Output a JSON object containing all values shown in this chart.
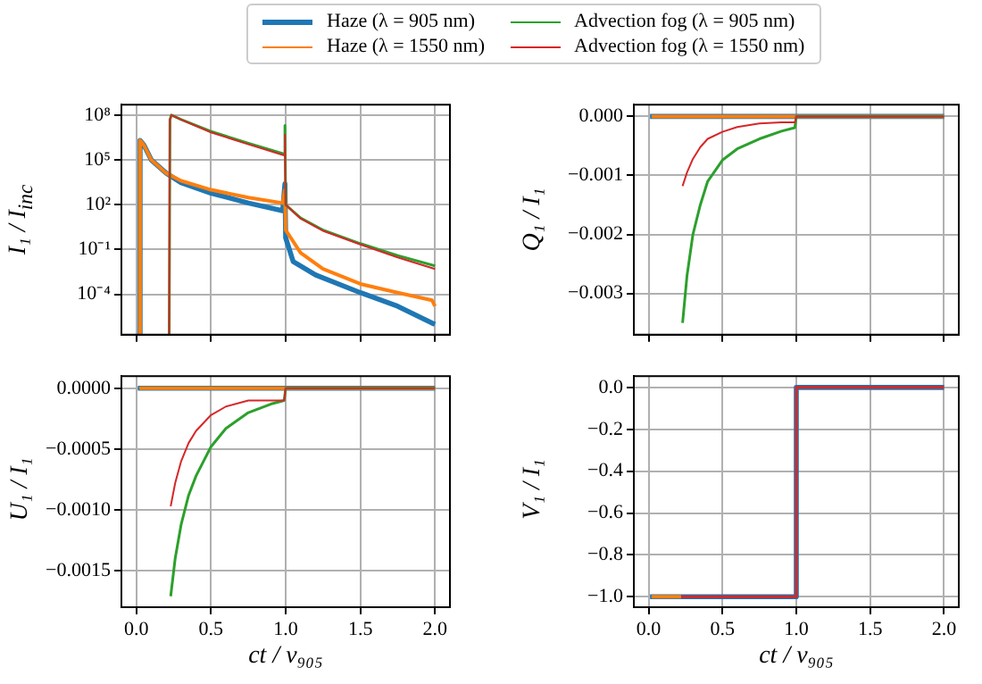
{
  "chart_data": [
    {
      "type": "line",
      "ylabel": "I₁ / I$_{inc}$",
      "log": "y",
      "grid": true,
      "legend": "top",
      "tick_labels": "y",
      "xlim": [
        -0.1,
        2.1
      ],
      "xticks": [
        {
          "value": 0,
          "label": null
        },
        {
          "value": 0.5,
          "label": null
        },
        {
          "value": 1,
          "label": null
        },
        {
          "value": 1.5,
          "label": null
        },
        {
          "value": 2,
          "label": null
        }
      ],
      "ylim": [
        2e-07,
        500000000.0
      ],
      "yticks": [
        {
          "value": 0.0001,
          "label": "10⁻⁴"
        },
        {
          "value": 0.1,
          "label": "10⁻¹"
        },
        {
          "value": 100,
          "label": "10²"
        },
        {
          "value": 100000,
          "label": "10⁵"
        },
        {
          "value": 100000000,
          "label": "10⁸"
        }
      ],
      "series": [
        {
          "name": "Haze (λ = 905 nm)",
          "color": "#1f77b4",
          "x": [
            0.02,
            0.025,
            0.05,
            0.1,
            0.2,
            0.3,
            0.5,
            0.75,
            0.98,
            0.995,
            1.0,
            1.05,
            1.2,
            1.5,
            1.75,
            1.98,
            2.0
          ],
          "values": [
            2e-07,
            2000000.0,
            1000000.0,
            100000.0,
            13000.0,
            3000.0,
            600.0,
            130.0,
            40,
            2500.0,
            0.6,
            0.016,
            0.002,
            0.00013,
            1.6e-05,
            1.2e-06,
            1e-06
          ]
        },
        {
          "name": "Haze (λ = 1550 nm)",
          "color": "#ff7f0e",
          "x": [
            0.02,
            0.025,
            0.05,
            0.1,
            0.2,
            0.3,
            0.5,
            0.75,
            0.98,
            0.995,
            1.0,
            1.1,
            1.25,
            1.5,
            1.75,
            1.98,
            2.0
          ],
          "values": [
            2e-07,
            2000000.0,
            1000000.0,
            100000.0,
            13000.0,
            4000.0,
            1000.0,
            300.0,
            130.0,
            1000.0,
            2,
            0.06,
            0.005,
            0.0005,
            0.00013,
            4e-05,
            1.6e-05
          ]
        },
        {
          "name": "Advection fog (λ = 905 nm)",
          "color": "#2ca02c",
          "x": [
            0.22,
            0.225,
            0.235,
            0.3,
            0.5,
            0.75,
            0.99,
            0.995,
            1.0,
            1.1,
            1.25,
            1.5,
            1.75,
            2.0
          ],
          "values": [
            2e-07,
            50000000.0,
            100000000.0,
            50000000.0,
            8000000.0,
            1300000.0,
            250000.0,
            20000000.0,
            100,
            13,
            2,
            0.25,
            0.04,
            0.008
          ]
        },
        {
          "name": "Advection fog (λ = 1550 nm)",
          "color": "#d62728",
          "x": [
            0.22,
            0.225,
            0.235,
            0.3,
            0.5,
            0.75,
            0.99,
            0.995,
            1.0,
            1.1,
            1.25,
            1.5,
            1.75,
            2.0
          ],
          "values": [
            2e-07,
            50000000.0,
            100000000.0,
            50000000.0,
            7000000.0,
            1100000.0,
            200000.0,
            5000000.0,
            100,
            12,
            1.8,
            0.22,
            0.03,
            0.005
          ]
        }
      ]
    },
    {
      "type": "line",
      "ylabel": "Q₁ / I₁",
      "grid": true,
      "tick_labels": "y",
      "xlim": [
        -0.1,
        2.1
      ],
      "xticks": [
        {
          "value": 0,
          "label": null
        },
        {
          "value": 0.5,
          "label": null
        },
        {
          "value": 1,
          "label": null
        },
        {
          "value": 1.5,
          "label": null
        },
        {
          "value": 2,
          "label": null
        }
      ],
      "ylim": [
        -0.0037,
        0.0002
      ],
      "yticks": [
        {
          "value": -0.003,
          "label": "−0.003"
        },
        {
          "value": -0.002,
          "label": "−0.002"
        },
        {
          "value": -0.001,
          "label": "−0.001"
        },
        {
          "value": 0,
          "label": "0.000"
        }
      ],
      "series": [
        {
          "color": "#1f77b4",
          "x": [
            0.01,
            2.0
          ],
          "values": [
            0,
            0
          ]
        },
        {
          "color": "#ff7f0e",
          "x": [
            0.02,
            1.0,
            2.0
          ],
          "values": [
            0,
            0,
            0
          ]
        },
        {
          "color": "#2ca02c",
          "x": [
            0.23,
            0.26,
            0.3,
            0.35,
            0.4,
            0.5,
            0.6,
            0.75,
            0.9,
            0.99,
            1.0,
            2.0
          ],
          "values": [
            -0.0035,
            -0.0027,
            -0.002,
            -0.0015,
            -0.0011,
            -0.00074,
            -0.00055,
            -0.00038,
            -0.00025,
            -0.00019,
            0,
            0
          ]
        },
        {
          "color": "#d62728",
          "x": [
            0.23,
            0.26,
            0.3,
            0.35,
            0.4,
            0.5,
            0.6,
            0.75,
            0.9,
            0.99,
            1.0,
            2.0
          ],
          "values": [
            -0.00118,
            -0.00095,
            -0.00072,
            -0.00052,
            -0.00038,
            -0.00026,
            -0.00018,
            -0.00012,
            -0.0001,
            -0.0001,
            0,
            0
          ]
        }
      ]
    },
    {
      "type": "line",
      "xlabel": "ct / v₉₀₅",
      "ylabel": "U₁ / I₁",
      "grid": true,
      "xlim": [
        -0.1,
        2.1
      ],
      "xticks": [
        {
          "value": 0,
          "label": "0.0"
        },
        {
          "value": 0.5,
          "label": "0.5"
        },
        {
          "value": 1,
          "label": "1.0"
        },
        {
          "value": 1.5,
          "label": "1.5"
        },
        {
          "value": 2,
          "label": "2.0"
        }
      ],
      "ylim": [
        -0.0018,
        0.0001
      ],
      "yticks": [
        {
          "value": -0.0015,
          "label": "−0.0015"
        },
        {
          "value": -0.001,
          "label": "−0.0010"
        },
        {
          "value": -0.0005,
          "label": "−0.0005"
        },
        {
          "value": 0,
          "label": "0.0000"
        }
      ],
      "series": [
        {
          "color": "#1f77b4",
          "x": [
            0.01,
            2.0
          ],
          "values": [
            0,
            0
          ]
        },
        {
          "color": "#ff7f0e",
          "x": [
            0.02,
            1.0,
            2.0
          ],
          "values": [
            0,
            0,
            0
          ]
        },
        {
          "color": "#2ca02c",
          "x": [
            0.23,
            0.26,
            0.3,
            0.35,
            0.4,
            0.5,
            0.6,
            0.75,
            0.9,
            0.99,
            1.0,
            2.0
          ],
          "values": [
            -0.00171,
            -0.0014,
            -0.00112,
            -0.00088,
            -0.00072,
            -0.00048,
            -0.00033,
            -0.0002,
            -0.00013,
            -0.0001,
            0,
            0
          ]
        },
        {
          "color": "#d62728",
          "x": [
            0.23,
            0.26,
            0.3,
            0.35,
            0.4,
            0.5,
            0.6,
            0.75,
            0.9,
            0.99,
            1.0,
            2.0
          ],
          "values": [
            -0.00097,
            -0.00078,
            -0.0006,
            -0.00045,
            -0.00035,
            -0.00022,
            -0.00015,
            -0.0001,
            -0.0001,
            -0.0001,
            0,
            0
          ]
        }
      ]
    },
    {
      "type": "line",
      "xlabel": "ct / v₉₀₅",
      "ylabel": "V₁ / I₁",
      "grid": true,
      "xlim": [
        -0.1,
        2.1
      ],
      "xticks": [
        {
          "value": 0,
          "label": "0.0"
        },
        {
          "value": 0.5,
          "label": "0.5"
        },
        {
          "value": 1,
          "label": "1.0"
        },
        {
          "value": 1.5,
          "label": "1.5"
        },
        {
          "value": 2,
          "label": "2.0"
        }
      ],
      "ylim": [
        -1.05,
        0.054
      ],
      "yticks": [
        {
          "value": -1,
          "label": "−1.0"
        },
        {
          "value": -0.8,
          "label": "−0.8"
        },
        {
          "value": -0.6,
          "label": "−0.6"
        },
        {
          "value": -0.4,
          "label": "−0.4"
        },
        {
          "value": -0.2,
          "label": "−0.2"
        },
        {
          "value": 0,
          "label": "0.0"
        }
      ],
      "series": [
        {
          "color": "#1f77b4",
          "x": [
            0.01,
            1.0,
            1.0,
            2.0
          ],
          "values": [
            -1,
            -1,
            0,
            0
          ]
        },
        {
          "color": "#ff7f0e",
          "x": [
            0.02,
            0.22
          ],
          "values": [
            -1,
            -1
          ]
        },
        {
          "color": "#d62728",
          "x": [
            0.22,
            1.0,
            1.0,
            2.0
          ],
          "values": [
            -1,
            -1,
            0,
            0
          ]
        }
      ]
    }
  ]
}
